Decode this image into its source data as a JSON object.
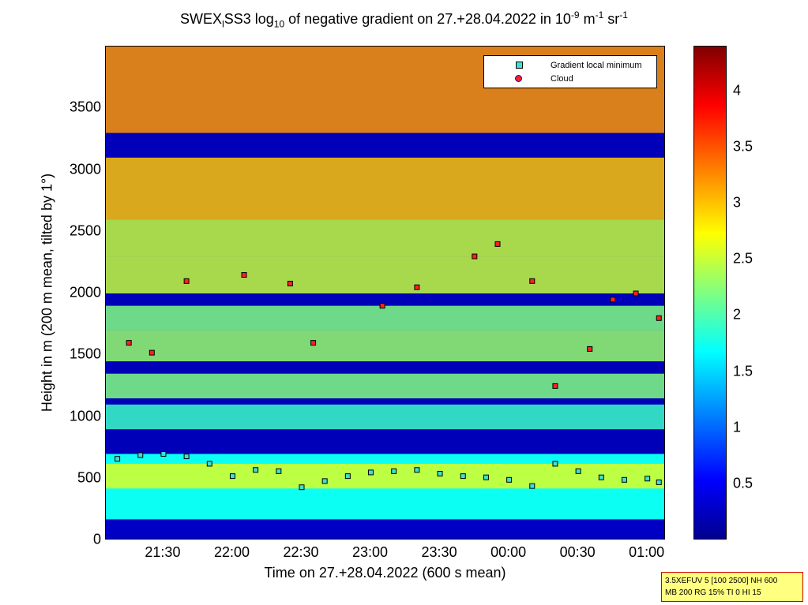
{
  "title": {
    "part1": "SWEX",
    "sub1": "l",
    "part2": "SS3 log",
    "sub2": "10",
    "part3": " of negative gradient on 27.+28.04.2022 in 10",
    "sup1": "-9",
    "part4": " m",
    "sup2": "-1",
    "part5": " sr",
    "sup3": "-1"
  },
  "legend": {
    "items": [
      "Gradient local minimum",
      "Cloud"
    ]
  },
  "infobox": {
    "line1": "3.5XEFUV 5 [100 2500] NH 600",
    "line2": "MB 200 RG 15% TI 0 HI 15"
  },
  "chart_data": {
    "type": "heatmap",
    "xlabel": "Time on 27.+28.04.2022 (600 s mean)",
    "ylabel": "Height in m (200 m mean, tilted by 1°)",
    "ylim": [
      0,
      4000
    ],
    "x_tick_labels": [
      "21:30",
      "22:00",
      "22:30",
      "23:00",
      "23:30",
      "00:00",
      "00:30",
      "01:00"
    ],
    "y_tick_labels": [
      "0",
      "500",
      "1000",
      "1500",
      "2000",
      "2500",
      "3000",
      "3500"
    ],
    "y_tick_values": [
      0,
      500,
      1000,
      1500,
      2000,
      2500,
      3000,
      3500
    ],
    "colorbar": {
      "range": [
        0,
        4.4
      ],
      "tick_labels": [
        "0.5",
        "1",
        "1.5",
        "2",
        "2.5",
        "3",
        "3.5",
        "4"
      ],
      "tick_values": [
        0.5,
        1,
        1.5,
        2,
        2.5,
        3,
        3.5,
        4
      ],
      "colormap": "jet"
    },
    "layers": [
      {
        "name": "surface",
        "y": [
          0,
          170
        ],
        "value": 0.3
      },
      {
        "name": "boundary-layer",
        "y": [
          170,
          700
        ],
        "value": 1.7
      },
      {
        "name": "aerosol-layer-1",
        "y": [
          420,
          620
        ],
        "value": 2.6
      },
      {
        "name": "layer-1000",
        "y": [
          900,
          1100
        ],
        "value": 1.9
      },
      {
        "name": "layer-1250",
        "y": [
          1150,
          1350
        ],
        "value": 2.2
      },
      {
        "name": "layer-1500",
        "y": [
          1450,
          1700
        ],
        "value": 2.3
      },
      {
        "name": "layer-1750",
        "y": [
          1700,
          1900
        ],
        "value": 2.2
      },
      {
        "name": "layer-2100",
        "y": [
          2000,
          2300
        ],
        "value": 2.5
      },
      {
        "name": "layer-2400",
        "y": [
          2300,
          2600
        ],
        "value": 2.5
      },
      {
        "name": "upper-2800",
        "y": [
          2600,
          3100
        ],
        "value": 3.0
      },
      {
        "name": "upper-3500",
        "y": [
          3300,
          4000
        ],
        "value": 3.2
      }
    ],
    "series": [
      {
        "name": "Gradient local minimum",
        "color": "#40e0d0",
        "x": [
          "21:10",
          "21:20",
          "21:30",
          "21:40",
          "21:50",
          "22:00",
          "22:10",
          "22:20",
          "22:30",
          "22:40",
          "22:50",
          "23:00",
          "23:10",
          "23:20",
          "23:30",
          "23:40",
          "23:50",
          "00:00",
          "00:10",
          "00:20",
          "00:30",
          "00:40",
          "00:50",
          "01:00",
          "01:05"
        ],
        "y": [
          660,
          690,
          700,
          680,
          620,
          520,
          570,
          560,
          430,
          480,
          520,
          550,
          560,
          570,
          540,
          520,
          510,
          490,
          440,
          620,
          560,
          510,
          490,
          500,
          470
        ]
      },
      {
        "name": "Cloud",
        "color": "#ff2020",
        "x": [
          "21:15",
          "21:25",
          "21:40",
          "22:05",
          "22:25",
          "22:35",
          "23:05",
          "23:20",
          "23:45",
          "23:55",
          "00:10",
          "00:20",
          "00:35",
          "00:45",
          "00:55",
          "01:05"
        ],
        "y": [
          1600,
          1520,
          2100,
          2150,
          2080,
          1600,
          1900,
          2050,
          2300,
          2400,
          2100,
          1250,
          1550,
          1950,
          2000,
          1800
        ]
      }
    ]
  }
}
